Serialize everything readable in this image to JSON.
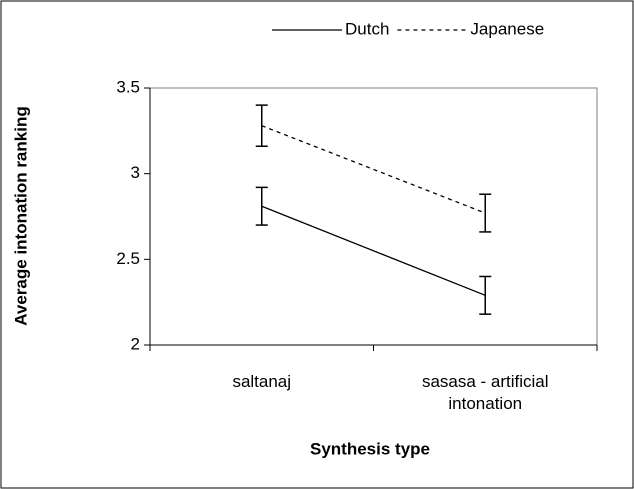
{
  "chart_data": {
    "type": "line",
    "x_label": "Synthesis type",
    "y_label": "Average intonation ranking",
    "categories": [
      "saltanaj",
      "sasasa - artificial intonation"
    ],
    "series": [
      {
        "name": "Dutch",
        "color": "#000000",
        "dash": "solid",
        "values": [
          2.81,
          2.29
        ],
        "errors": [
          0.11,
          0.11
        ]
      },
      {
        "name": "Japanese",
        "color": "#000000",
        "dash": "dotted",
        "values": [
          3.28,
          2.77
        ],
        "errors": [
          0.12,
          0.11
        ]
      }
    ],
    "ylim": [
      2,
      3.5
    ],
    "yticks": [
      2,
      2.5,
      3,
      3.5
    ],
    "grid": false,
    "legend": "top"
  }
}
